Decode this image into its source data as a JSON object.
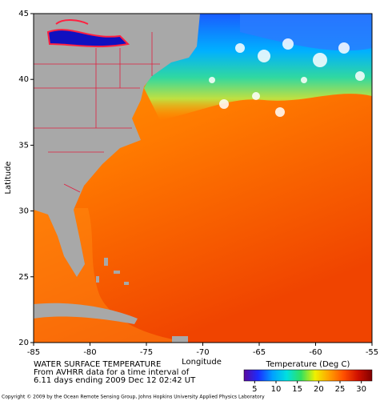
{
  "map": {
    "title": "WATER SURFACE TEMPERATURE",
    "subtitle_lines": [
      "From AVHRR data for a time interval of",
      "6.11 days ending 2009 Dec 12 02:42 UT"
    ],
    "xlabel": "Longitude",
    "ylabel": "Latitude",
    "xlim": [
      -85,
      -55
    ],
    "ylim": [
      20,
      45
    ],
    "xticks": [
      -85,
      -80,
      -75,
      -70,
      -65,
      -60,
      -55
    ],
    "yticks": [
      20,
      25,
      30,
      35,
      40,
      45
    ],
    "colorbar": {
      "label": "Temperature (Deg C)",
      "clim": [
        2.5,
        32.5
      ],
      "ticks": [
        5,
        10,
        15,
        20,
        25,
        30
      ],
      "colors": [
        "#5a0aa0",
        "#1a2cff",
        "#00a0ff",
        "#00e0e0",
        "#30e060",
        "#f0f000",
        "#ffa000",
        "#ff5000",
        "#d01000",
        "#800000"
      ]
    },
    "copyright": "Copyright © 2009 by the Ocean Remote Sensing Group, Johns Hopkins University Applied Physics Laboratory"
  }
}
